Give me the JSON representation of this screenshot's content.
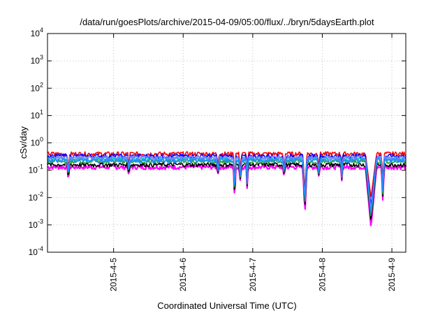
{
  "chart_data": {
    "type": "line",
    "title": "/data/run/goesPlots/archive/2015-04-09/05:00/flux/../bryn/5daysEarth.plot",
    "xlabel": "Coordinated Universal Time (UTC)",
    "ylabel": "cSv/day",
    "yscale": "log",
    "ylim": [
      0.0001,
      10000
    ],
    "xlim": [
      4.05,
      9.2
    ],
    "grid": true,
    "y_ticks": [
      {
        "base": "10",
        "exp": "-4"
      },
      {
        "base": "10",
        "exp": "-3"
      },
      {
        "base": "10",
        "exp": "-2"
      },
      {
        "base": "10",
        "exp": "-1"
      },
      {
        "base": "10",
        "exp": "0"
      },
      {
        "base": "10",
        "exp": "1"
      },
      {
        "base": "10",
        "exp": "2"
      },
      {
        "base": "10",
        "exp": "3"
      },
      {
        "base": "10",
        "exp": "4"
      }
    ],
    "x_ticks": [
      {
        "label": "2015-4-5",
        "value": 5
      },
      {
        "label": "2015-4-6",
        "value": 6
      },
      {
        "label": "2015-4-7",
        "value": 7
      },
      {
        "label": "2015-4-8",
        "value": 8
      },
      {
        "label": "2015-4-9",
        "value": 9
      }
    ],
    "series": [
      {
        "color": "#ff00ff",
        "base": 0.13,
        "scale": 1.0
      },
      {
        "color": "#ff0000",
        "base": 0.4,
        "scale": 0.6
      },
      {
        "color": "#0000ff",
        "base": 0.33,
        "scale": 0.7
      },
      {
        "color": "#000000",
        "base": 0.16,
        "scale": 0.9
      },
      {
        "color": "#00c8c8",
        "base": 0.26,
        "scale": 0.8
      },
      {
        "color": "#2aa02a",
        "base": 0.21,
        "scale": 0.85
      },
      {
        "color": "#8080ff",
        "base": 0.29,
        "scale": 0.75
      },
      {
        "color": "#1e90ff",
        "base": 0.23,
        "scale": 0.8
      }
    ],
    "dips": [
      {
        "x": 4.35,
        "min": 0.035,
        "width": 0.015
      },
      {
        "x": 5.22,
        "min": 0.05,
        "width": 0.012
      },
      {
        "x": 6.5,
        "min": 0.07,
        "width": 0.02
      },
      {
        "x": 6.74,
        "min": 0.007,
        "width": 0.018
      },
      {
        "x": 6.82,
        "min": 0.04,
        "width": 0.02
      },
      {
        "x": 6.92,
        "min": 0.02,
        "width": 0.015
      },
      {
        "x": 7.45,
        "min": 0.06,
        "width": 0.02
      },
      {
        "x": 7.75,
        "min": 0.0025,
        "width": 0.03
      },
      {
        "x": 7.95,
        "min": 0.06,
        "width": 0.02
      },
      {
        "x": 8.28,
        "min": 0.04,
        "width": 0.015
      },
      {
        "x": 8.7,
        "min": 0.0008,
        "width": 0.08
      },
      {
        "x": 8.87,
        "min": 0.007,
        "width": 0.02
      }
    ]
  }
}
